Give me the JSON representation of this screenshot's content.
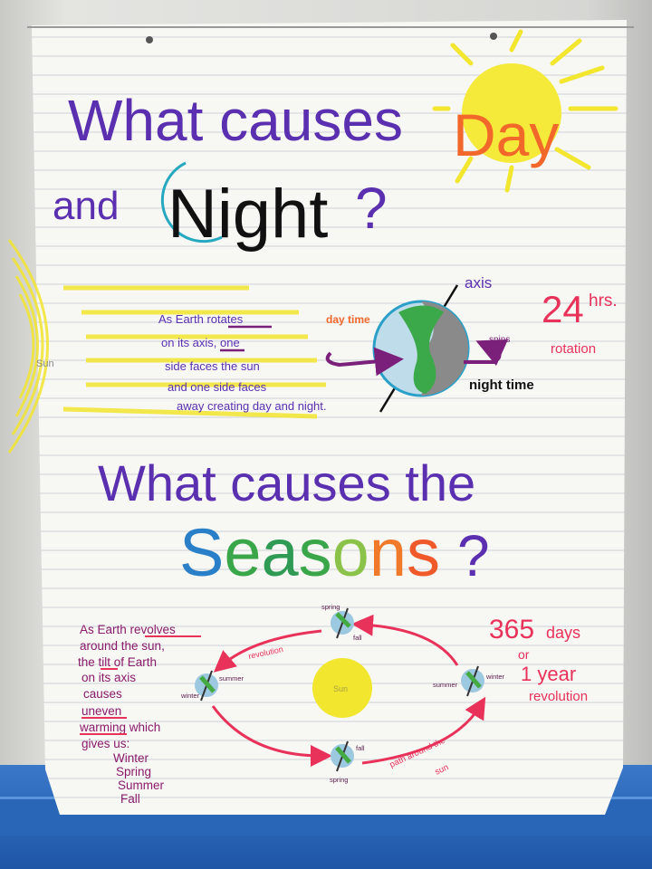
{
  "title_day_night": {
    "line1": "What causes",
    "day": "Day",
    "and": "and",
    "night": "Night",
    "question": "?"
  },
  "sun_label": "Sun",
  "rotation_text": [
    "As Earth rotates",
    "on its axis, one",
    "side faces the sun",
    "and one side faces",
    "away creating day and night."
  ],
  "earth_diagram": {
    "axis": "axis",
    "day_time": "day time",
    "spins": "spins",
    "night_time": "night time",
    "hours_number": "24",
    "hours_unit": "hrs.",
    "rotation": "rotation"
  },
  "title_seasons": {
    "line1": "What causes the",
    "letters": [
      "S",
      "e",
      "a",
      "s",
      "o",
      "n",
      "s"
    ],
    "question": "?"
  },
  "revolution_text": [
    "As Earth revolves",
    "around the sun,",
    "the tilt of Earth",
    "on its axis",
    "causes",
    "uneven",
    "warming which",
    "gives us:",
    "Winter",
    "Spring",
    "Summer",
    "Fall"
  ],
  "orbit": {
    "sun": "Sun",
    "top": {
      "a": "spring",
      "b": "fall"
    },
    "left": {
      "a": "summer",
      "b": "winter"
    },
    "bottom": {
      "a": "fall",
      "b": "spring"
    },
    "right": {
      "a": "summer",
      "b": "winter"
    },
    "revolution_arrow": "revolution",
    "path_line1": "path around the",
    "path_line2": "sun"
  },
  "year": {
    "number": "365",
    "days": "days",
    "or": "or",
    "one_year": "1 year",
    "revolution": "revolution"
  },
  "colors": {
    "purple": "#5a2fb0",
    "orange": "#f2682a",
    "red": "#e8325a",
    "yellow": "#f2e62e",
    "seasons": [
      "#2a7fc9",
      "#3aa64a",
      "#2f9a54",
      "#3aa64a",
      "#8bc34a",
      "#f07a2a",
      "#f05a2a"
    ]
  }
}
